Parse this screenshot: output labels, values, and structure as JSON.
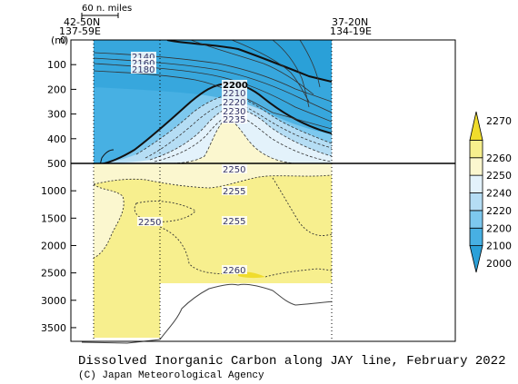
{
  "chart_data": {
    "type": "heatmap",
    "title": "Dissolved Inorganic Carbon along JAY line, February 2022",
    "credit": "(C) Japan Meteorological Agency",
    "ylabel": "(m)",
    "scale_bar_label": "60 n. miles",
    "station_left": {
      "lat": "42-50N",
      "lon": "137-59E"
    },
    "station_right": {
      "lat": "37-20N",
      "lon": "134-19E"
    },
    "y_ticks_upper": [
      "0",
      "100",
      "200",
      "300",
      "400",
      "500"
    ],
    "y_ticks_lower": [
      "1000",
      "1500",
      "2000",
      "2500",
      "3000",
      "3500"
    ],
    "upper_depth_range": [
      0,
      500
    ],
    "lower_depth_range": [
      500,
      3750
    ],
    "colorbar": {
      "levels": [
        2000,
        2100,
        2200,
        2220,
        2240,
        2250,
        2260,
        2270
      ],
      "labels": [
        "2000",
        "2100",
        "2200",
        "2220",
        "2240",
        "2250",
        "2260",
        "2270"
      ],
      "colors": [
        "#2aa0d8",
        "#47b0e3",
        "#7dc8ee",
        "#b5ddf4",
        "#e3f2fb",
        "#fbf7cf",
        "#f7ef8e",
        "#f0dc2c"
      ]
    },
    "contour_labels": [
      "2140",
      "2160",
      "2180",
      "2200",
      "2210",
      "2220",
      "2230",
      "2235",
      "2250",
      "2255",
      "2250",
      "2255",
      "2260"
    ]
  }
}
